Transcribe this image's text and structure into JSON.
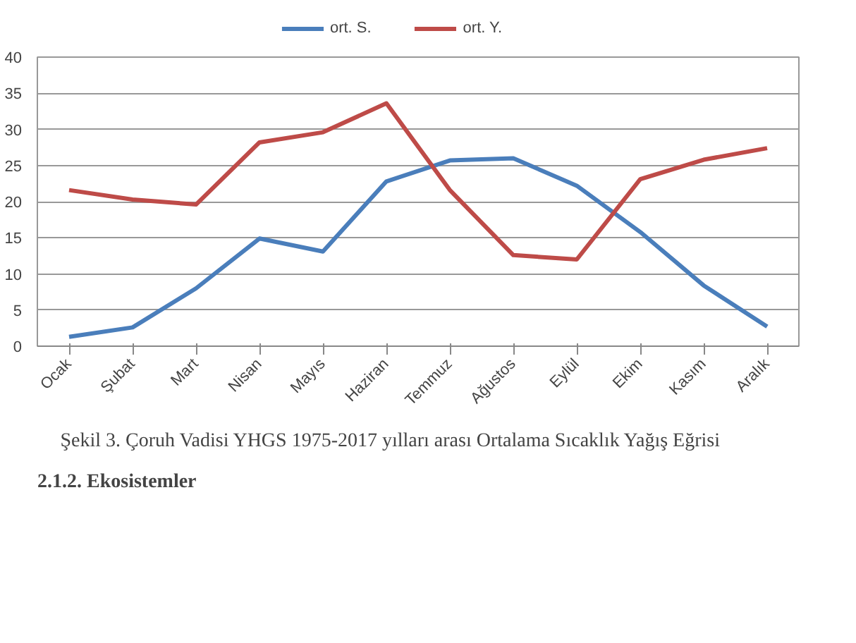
{
  "chart_data": {
    "type": "line",
    "categories": [
      "Ocak",
      "Şubat",
      "Mart",
      "Nisan",
      "Mayıs",
      "Haziran",
      "Temmuz",
      "Ağustos",
      "Eylül",
      "Ekim",
      "Kasım",
      "Aralık"
    ],
    "series": [
      {
        "name": "ort. S.",
        "color": "#4a7ebb",
        "values": [
          1.3,
          2.6,
          8.0,
          14.9,
          13.1,
          22.8,
          25.7,
          26.0,
          22.2,
          15.8,
          8.4,
          2.7
        ]
      },
      {
        "name": "ort. Y.",
        "color": "#be4b48",
        "values": [
          21.6,
          20.3,
          19.6,
          28.2,
          29.6,
          33.6,
          21.6,
          12.6,
          12.0,
          23.1,
          25.8,
          27.4
        ]
      }
    ],
    "ylim": [
      0,
      40
    ],
    "yticks": [
      0,
      5,
      10,
      15,
      20,
      25,
      30,
      35,
      40
    ],
    "grid": "y",
    "legend": "top",
    "marker": "none",
    "line_style": "solid",
    "annotations": [
      "Şekil 3.            Çoruh Vadisi YHGS 1975-2017 yılları arası Ortalama Sıcaklık Yağış Eğrisi",
      "2.1.2.   Ekosistemler"
    ]
  }
}
